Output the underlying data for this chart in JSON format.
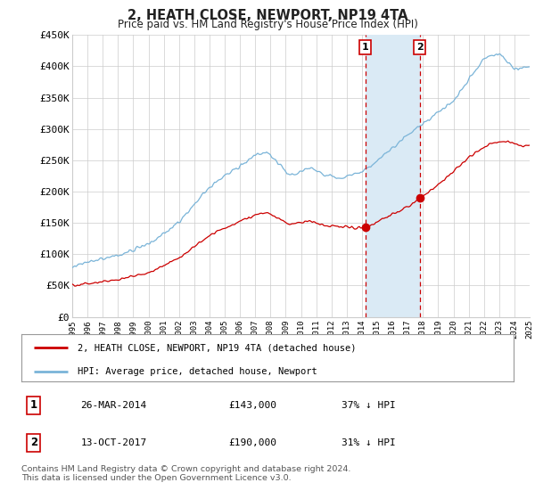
{
  "title": "2, HEATH CLOSE, NEWPORT, NP19 4TA",
  "subtitle": "Price paid vs. HM Land Registry's House Price Index (HPI)",
  "hpi_color": "#7ab4d8",
  "price_color": "#cc0000",
  "marker_color": "#cc0000",
  "vline_color": "#cc0000",
  "shade_color": "#daeaf5",
  "y_min": 0,
  "y_max": 450000,
  "y_ticks": [
    0,
    50000,
    100000,
    150000,
    200000,
    250000,
    300000,
    350000,
    400000,
    450000
  ],
  "y_tick_labels": [
    "£0",
    "£50K",
    "£100K",
    "£150K",
    "£200K",
    "£250K",
    "£300K",
    "£350K",
    "£400K",
    "£450K"
  ],
  "x_start_year": 1995,
  "x_end_year": 2025,
  "transaction1_date": "26-MAR-2014",
  "transaction1_price": 143000,
  "transaction1_pct": "37%",
  "transaction1_label": "1",
  "transaction1_year": 2014.23,
  "transaction2_date": "13-OCT-2017",
  "transaction2_price": 190000,
  "transaction2_label": "2",
  "transaction2_pct": "31%",
  "transaction2_year": 2017.79,
  "legend_line1": "2, HEATH CLOSE, NEWPORT, NP19 4TA (detached house)",
  "legend_line2": "HPI: Average price, detached house, Newport",
  "footer": "Contains HM Land Registry data © Crown copyright and database right 2024.\nThis data is licensed under the Open Government Licence v3.0.",
  "background_color": "#ffffff",
  "grid_color": "#cccccc"
}
